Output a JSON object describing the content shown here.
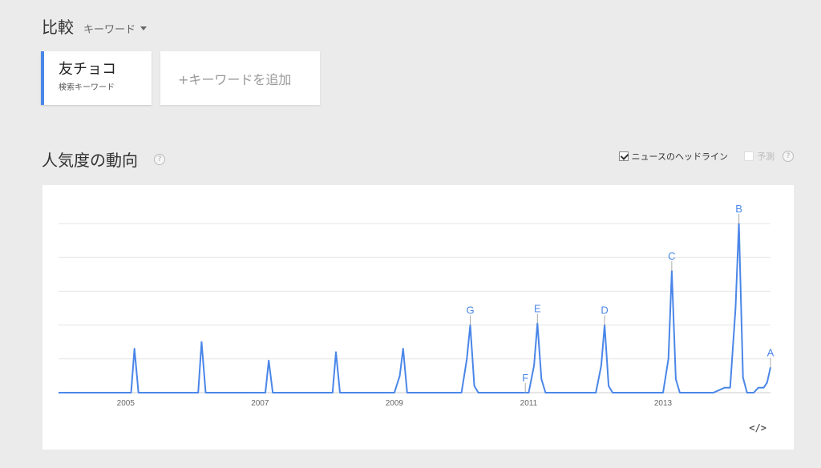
{
  "header": {
    "title": "比較",
    "keyword_dropdown": "キーワード"
  },
  "keyword_card": {
    "term": "友チョコ",
    "subtitle": "検索キーワード"
  },
  "add_keyword": {
    "label": "+キーワードを追加"
  },
  "interest": {
    "title": "人気度の動向",
    "help_glyph": "?"
  },
  "options": {
    "news_headlines": "ニュースのヘッドライン",
    "news_checked": true,
    "forecast": "予測",
    "forecast_checked": false,
    "help_glyph": "?"
  },
  "embed": {
    "label": "</>"
  },
  "colors": {
    "series": "#4a86e8",
    "accent": "#4a86e8",
    "grid": "#e5e5e5",
    "annotation_stem": "#aaaaaa"
  },
  "chart_data": {
    "type": "line",
    "title": "",
    "xlabel": "",
    "ylabel": "",
    "xlim": [
      2004.0,
      2014.6
    ],
    "ylim": [
      0,
      100
    ],
    "ticks": [
      2005,
      2007,
      2009,
      2011,
      2013
    ],
    "x_tick_labels": [
      "2005",
      "2007",
      "2009",
      "2011",
      "2013"
    ],
    "grid": true,
    "series": [
      {
        "name": "",
        "points": [
          [
            2004.0,
            0
          ],
          [
            2005.0,
            0
          ],
          [
            2005.08,
            0
          ],
          [
            2005.13,
            26
          ],
          [
            2005.19,
            0
          ],
          [
            2006.08,
            0
          ],
          [
            2006.13,
            30
          ],
          [
            2006.19,
            0
          ],
          [
            2007.08,
            0
          ],
          [
            2007.13,
            19
          ],
          [
            2007.19,
            0
          ],
          [
            2008.08,
            0
          ],
          [
            2008.13,
            24
          ],
          [
            2008.19,
            0
          ],
          [
            2009.0,
            0
          ],
          [
            2009.08,
            10
          ],
          [
            2009.13,
            26
          ],
          [
            2009.19,
            0
          ],
          [
            2010.0,
            0
          ],
          [
            2010.08,
            20
          ],
          [
            2010.13,
            40
          ],
          [
            2010.19,
            4
          ],
          [
            2010.25,
            0
          ],
          [
            2011.0,
            0
          ],
          [
            2011.08,
            16
          ],
          [
            2011.13,
            41
          ],
          [
            2011.19,
            8
          ],
          [
            2011.25,
            0
          ],
          [
            2012.0,
            0
          ],
          [
            2012.08,
            16
          ],
          [
            2012.13,
            40
          ],
          [
            2012.19,
            4
          ],
          [
            2012.25,
            0
          ],
          [
            2013.0,
            0
          ],
          [
            2013.08,
            20
          ],
          [
            2013.13,
            72
          ],
          [
            2013.19,
            8
          ],
          [
            2013.25,
            0
          ],
          [
            2013.75,
            0
          ],
          [
            2013.92,
            3
          ],
          [
            2014.0,
            3
          ],
          [
            2014.08,
            50
          ],
          [
            2014.13,
            100
          ],
          [
            2014.19,
            9
          ],
          [
            2014.25,
            0
          ],
          [
            2014.35,
            0
          ],
          [
            2014.42,
            3
          ],
          [
            2014.5,
            3
          ],
          [
            2014.55,
            6
          ],
          [
            2014.6,
            15
          ]
        ]
      }
    ],
    "annotations": [
      {
        "label": "G",
        "x": 2010.13,
        "y": 40
      },
      {
        "label": "F",
        "x": 2010.95,
        "y": 0
      },
      {
        "label": "E",
        "x": 2011.13,
        "y": 41
      },
      {
        "label": "D",
        "x": 2012.13,
        "y": 40
      },
      {
        "label": "C",
        "x": 2013.13,
        "y": 72
      },
      {
        "label": "B",
        "x": 2014.13,
        "y": 100
      },
      {
        "label": "A",
        "x": 2014.6,
        "y": 15
      }
    ]
  }
}
